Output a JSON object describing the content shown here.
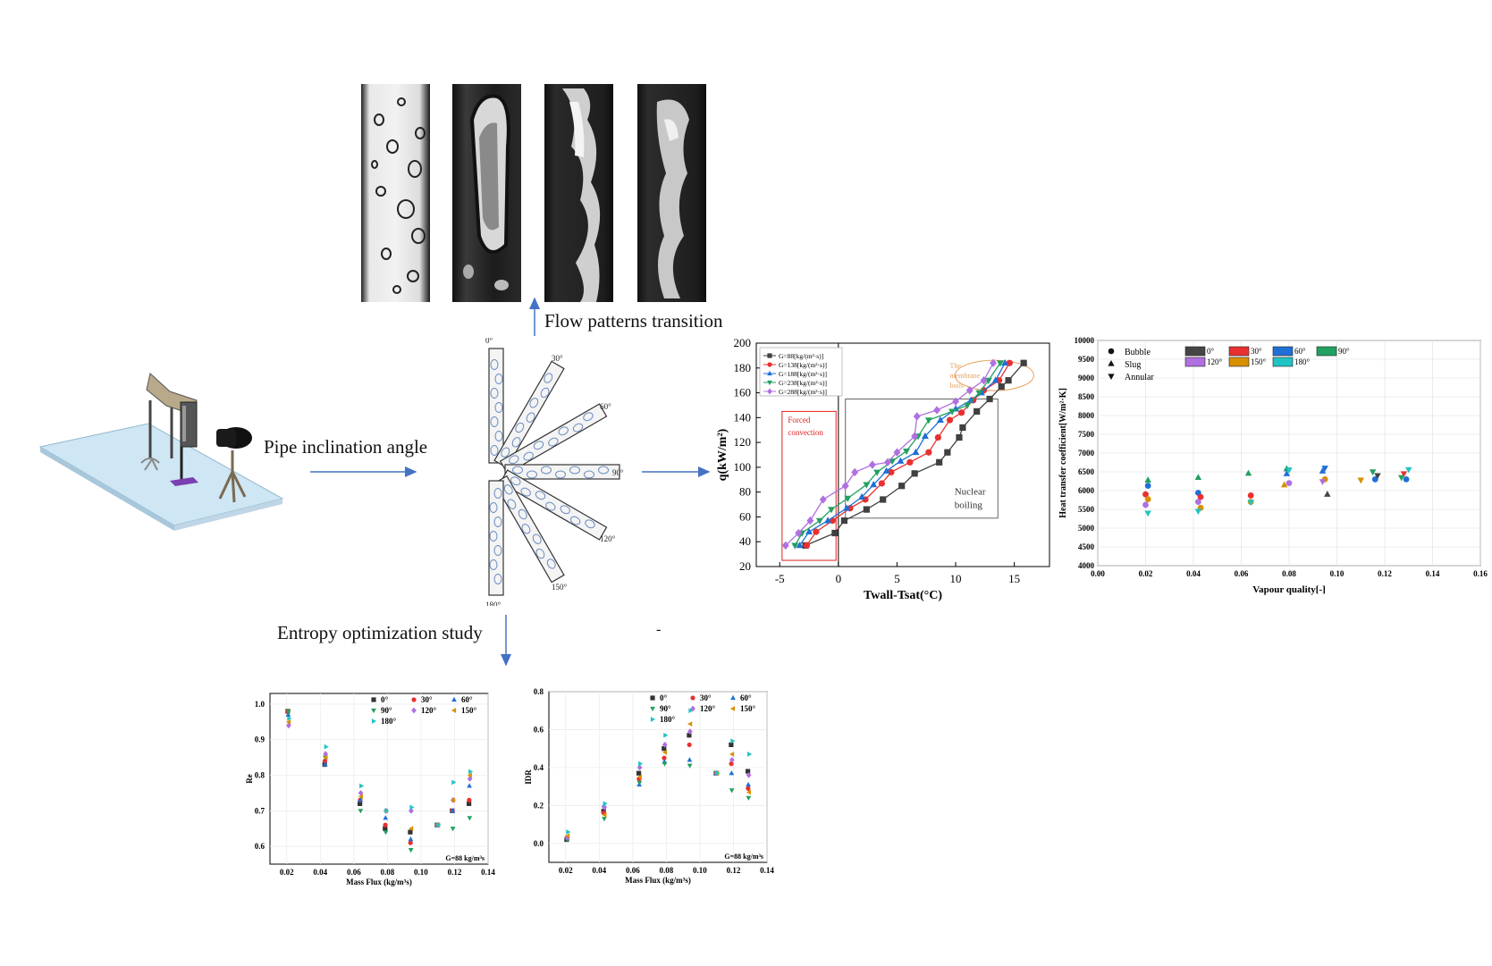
{
  "captions": {
    "flow_patterns": "Flow patterns  transition",
    "inclination": "Pipe inclination  angle",
    "entropy": "Entropy optimization study",
    "dash": "-"
  },
  "pipe_angles": [
    "0°",
    "30°",
    "60°",
    "90°",
    "120°",
    "150°",
    "180°"
  ],
  "colors": {
    "arrow": "#4472c4",
    "table": "#cfe6f4",
    "g88": "#404040",
    "g138": "#e83030",
    "g188": "#1f6fd6",
    "g238": "#22a060",
    "g288": "#b070e0",
    "forced_box": "#e02020",
    "membrane_ellipse": "#e8a060"
  },
  "chart_data": [
    {
      "id": "boiling-curve",
      "type": "line",
      "xlabel": "Twall-Tsat(°C)",
      "ylabel": "q(kW/m²)",
      "xlim": [
        -7,
        18
      ],
      "ylim": [
        20,
        200
      ],
      "xticks": [
        -5,
        0,
        5,
        10,
        15
      ],
      "yticks": [
        20,
        40,
        60,
        80,
        100,
        120,
        140,
        160,
        180,
        200
      ],
      "legend_position": "top-left",
      "series": [
        {
          "name": "G=88[kg/(m²·s)]",
          "marker": "square",
          "color": "#404040",
          "x": [
            -2.8,
            -0.3,
            0.5,
            2.4,
            3.8,
            5.4,
            6.5,
            8.6,
            9.3,
            10.3,
            10.6,
            11.8,
            12.9,
            13.9,
            14.5,
            15.8
          ],
          "y": [
            37,
            47,
            57,
            66,
            74,
            85,
            95,
            104,
            112,
            124,
            132,
            145,
            155,
            165,
            170,
            184
          ]
        },
        {
          "name": "G=138[kg/(m²·s)]",
          "marker": "circle",
          "color": "#e83030",
          "x": [
            -2.7,
            -1.9,
            -0.5,
            1.0,
            2.3,
            3.7,
            4.5,
            6.1,
            7.7,
            8.5,
            9.5,
            10.5,
            11.5,
            12.4,
            13.7,
            14.6
          ],
          "y": [
            37,
            48,
            57,
            67,
            74,
            87,
            96,
            104,
            112,
            124,
            138,
            144,
            154,
            162,
            170,
            184
          ]
        },
        {
          "name": "G=188[kg/(m²·s)]",
          "marker": "triangle-up",
          "color": "#1f6fd6",
          "x": [
            -3.3,
            -2.5,
            -0.9,
            0.7,
            2.0,
            3.0,
            4.1,
            5.3,
            6.6,
            7.4,
            8.7,
            10.0,
            11.3,
            12.2,
            13.4,
            14.2
          ],
          "y": [
            37,
            48,
            57,
            67,
            76,
            86,
            97,
            105,
            112,
            125,
            138,
            147,
            154,
            160,
            170,
            184
          ]
        },
        {
          "name": "G=238[kg/(m²·s)]",
          "marker": "triangle-down",
          "color": "#22a060",
          "x": [
            -3.7,
            -3.1,
            -1.6,
            -0.6,
            0.8,
            2.4,
            3.3,
            4.6,
            5.8,
            6.8,
            7.7,
            9.7,
            11.0,
            12.0,
            12.8,
            13.8
          ],
          "y": [
            37,
            47,
            57,
            66,
            75,
            86,
            96,
            105,
            113,
            125,
            138,
            145,
            150,
            160,
            170,
            184
          ]
        },
        {
          "name": "G=288[kg/(m²·s)]",
          "marker": "diamond",
          "color": "#b070e0",
          "x": [
            -4.5,
            -3.4,
            -2.4,
            -1.3,
            0.6,
            1.4,
            2.9,
            4.2,
            5.0,
            6.5,
            6.7,
            8.4,
            10.0,
            11.2,
            12.4,
            13.2
          ],
          "y": [
            37,
            47,
            57,
            74,
            85,
            96,
            102,
            104,
            112,
            125,
            141,
            146,
            153,
            162,
            170,
            184
          ]
        }
      ],
      "annotations": [
        "Forced convection",
        "Nuclear boiling",
        "The membrane boils"
      ]
    },
    {
      "id": "htc-vs-quality",
      "type": "scatter",
      "xlabel": "Vapour quality[-]",
      "ylabel": "Heat transfer coefficient[W/m²·K]",
      "xlim": [
        0,
        0.16
      ],
      "ylim": [
        4000,
        10000
      ],
      "xticks": [
        "0.00",
        "0.02",
        "0.04",
        "0.06",
        "0.08",
        "0.10",
        "0.12",
        "0.14",
        "0.16"
      ],
      "yticks": [
        4000,
        4500,
        5000,
        5500,
        6000,
        6500,
        7000,
        7500,
        8000,
        8500,
        9000,
        9500,
        10000
      ],
      "legend_markers": [
        "Bubble",
        "Slug",
        "Annular"
      ],
      "legend_angles": [
        "0°",
        "30°",
        "60°",
        "90°",
        "120°",
        "150°",
        "180°"
      ],
      "angle_colors": [
        "#454545",
        "#e83030",
        "#1f6fd6",
        "#22a060",
        "#b070e0",
        "#d99000",
        "#20c4c4"
      ],
      "points": [
        {
          "x": 0.02,
          "y": 5900,
          "m": "circle",
          "c": 1
        },
        {
          "x": 0.021,
          "y": 6130,
          "m": "circle",
          "c": 2
        },
        {
          "x": 0.021,
          "y": 6280,
          "m": "triangle-up",
          "c": 3
        },
        {
          "x": 0.02,
          "y": 5620,
          "m": "circle",
          "c": 4
        },
        {
          "x": 0.021,
          "y": 5770,
          "m": "circle",
          "c": 5
        },
        {
          "x": 0.021,
          "y": 5400,
          "m": "triangle-down",
          "c": 6
        },
        {
          "x": 0.042,
          "y": 5940,
          "m": "circle",
          "c": 2
        },
        {
          "x": 0.043,
          "y": 5830,
          "m": "circle",
          "c": 1
        },
        {
          "x": 0.042,
          "y": 6350,
          "m": "triangle-up",
          "c": 3
        },
        {
          "x": 0.042,
          "y": 5700,
          "m": "circle",
          "c": 4
        },
        {
          "x": 0.043,
          "y": 5540,
          "m": "circle",
          "c": 5
        },
        {
          "x": 0.042,
          "y": 5450,
          "m": "triangle-down",
          "c": 6
        },
        {
          "x": 0.064,
          "y": 5870,
          "m": "circle",
          "c": 1
        },
        {
          "x": 0.063,
          "y": 6460,
          "m": "triangle-up",
          "c": 3
        },
        {
          "x": 0.064,
          "y": 5700,
          "m": "circle",
          "c": 5
        },
        {
          "x": 0.064,
          "y": 5690,
          "m": "triangle-down",
          "c": 6
        },
        {
          "x": 0.079,
          "y": 6580,
          "m": "triangle-up",
          "c": 3
        },
        {
          "x": 0.079,
          "y": 6450,
          "m": "triangle-up",
          "c": 2
        },
        {
          "x": 0.08,
          "y": 6200,
          "m": "circle",
          "c": 4
        },
        {
          "x": 0.08,
          "y": 6550,
          "m": "triangle-down",
          "c": 6
        },
        {
          "x": 0.078,
          "y": 6150,
          "m": "triangle-up",
          "c": 5
        },
        {
          "x": 0.094,
          "y": 6520,
          "m": "triangle-up",
          "c": 2
        },
        {
          "x": 0.095,
          "y": 6600,
          "m": "triangle-down",
          "c": 2
        },
        {
          "x": 0.095,
          "y": 6300,
          "m": "circle",
          "c": 5
        },
        {
          "x": 0.096,
          "y": 5900,
          "m": "triangle-up",
          "c": 0
        },
        {
          "x": 0.094,
          "y": 6240,
          "m": "triangle-down",
          "c": 4
        },
        {
          "x": 0.11,
          "y": 6280,
          "m": "triangle-down",
          "c": 5
        },
        {
          "x": 0.115,
          "y": 6500,
          "m": "triangle-down",
          "c": 3
        },
        {
          "x": 0.116,
          "y": 6300,
          "m": "circle",
          "c": 2
        },
        {
          "x": 0.117,
          "y": 6400,
          "m": "triangle-down",
          "c": 0
        },
        {
          "x": 0.127,
          "y": 6350,
          "m": "triangle-down",
          "c": 3
        },
        {
          "x": 0.128,
          "y": 6450,
          "m": "triangle-down",
          "c": 1
        },
        {
          "x": 0.13,
          "y": 6560,
          "m": "triangle-down",
          "c": 6
        },
        {
          "x": 0.129,
          "y": 6300,
          "m": "circle",
          "c": 2
        }
      ]
    },
    {
      "id": "re-vs-massflux",
      "type": "scatter",
      "xlabel": "Mass Flux (kg/m³s)",
      "ylabel": "Re",
      "xlim": [
        0.01,
        0.14
      ],
      "ylim": [
        0.55,
        1.03
      ],
      "xticks": [
        "0.02",
        "0.04",
        "0.06",
        "0.08",
        "0.10",
        "0.12",
        "0.14"
      ],
      "yticks": [
        "0.6",
        "0.7",
        "0.8",
        "0.9",
        "1.0"
      ],
      "note": "G=88 kg/m³s",
      "legend": [
        "0°",
        "30°",
        "60°",
        "90°",
        "120°",
        "150°",
        "180°"
      ],
      "angle_colors": [
        "#333333",
        "#e83030",
        "#1f6fd6",
        "#22a060",
        "#b070e0",
        "#d99000",
        "#20c4c4"
      ],
      "markers": [
        "square",
        "circle",
        "triangle-up",
        "triangle-down",
        "diamond",
        "triangle-left",
        "triangle-right"
      ],
      "x": [
        0.021,
        0.043,
        0.064,
        0.079,
        0.094,
        0.11,
        0.119,
        0.129
      ],
      "values": [
        [
          0.98,
          0.83,
          0.72,
          0.65,
          0.64,
          0.66,
          0.7,
          0.72
        ],
        [
          0.98,
          0.84,
          0.73,
          0.66,
          0.61,
          0.66,
          0.7,
          0.73
        ],
        [
          0.97,
          0.83,
          0.73,
          0.68,
          0.62,
          0.66,
          0.7,
          0.77
        ],
        [
          0.98,
          0.85,
          0.7,
          0.64,
          0.59,
          0.66,
          0.65,
          0.68
        ],
        [
          0.94,
          0.86,
          0.75,
          0.7,
          0.7,
          0.66,
          0.73,
          0.79
        ],
        [
          0.95,
          0.85,
          0.74,
          0.7,
          0.65,
          0.66,
          0.73,
          0.8
        ],
        [
          0.96,
          0.88,
          0.77,
          0.7,
          0.71,
          0.66,
          0.78,
          0.81
        ]
      ]
    },
    {
      "id": "idr-vs-massflux",
      "type": "scatter",
      "xlabel": "Mass Flux (kg/m³s)",
      "ylabel": "IDR",
      "xlim": [
        0.01,
        0.14
      ],
      "ylim": [
        -0.1,
        0.8
      ],
      "xticks": [
        "0.02",
        "0.04",
        "0.06",
        "0.08",
        "0.10",
        "0.12",
        "0.14"
      ],
      "yticks": [
        "0.0",
        "0.2",
        "0.4",
        "0.6",
        "0.8"
      ],
      "note": "G=88 kg/m³s",
      "legend": [
        "0°",
        "30°",
        "60°",
        "90°",
        "120°",
        "150°",
        "180°"
      ],
      "angle_colors": [
        "#333333",
        "#e83030",
        "#1f6fd6",
        "#22a060",
        "#b070e0",
        "#d99000",
        "#20c4c4"
      ],
      "markers": [
        "square",
        "circle",
        "triangle-up",
        "triangle-down",
        "diamond",
        "triangle-left",
        "triangle-right"
      ],
      "x": [
        0.021,
        0.043,
        0.064,
        0.079,
        0.094,
        0.11,
        0.119,
        0.129
      ],
      "values": [
        [
          0.02,
          0.17,
          0.37,
          0.5,
          0.57,
          0.37,
          0.52,
          0.38
        ],
        [
          0.03,
          0.16,
          0.34,
          0.45,
          0.52,
          0.37,
          0.42,
          0.29
        ],
        [
          0.03,
          0.2,
          0.31,
          0.43,
          0.44,
          0.37,
          0.37,
          0.31
        ],
        [
          0.02,
          0.13,
          0.32,
          0.42,
          0.41,
          0.37,
          0.28,
          0.24
        ],
        [
          0.03,
          0.19,
          0.4,
          0.52,
          0.59,
          0.37,
          0.44,
          0.36
        ],
        [
          0.04,
          0.15,
          0.35,
          0.48,
          0.63,
          0.37,
          0.47,
          0.27
        ],
        [
          0.06,
          0.21,
          0.42,
          0.57,
          0.7,
          0.37,
          0.54,
          0.47
        ]
      ]
    }
  ]
}
